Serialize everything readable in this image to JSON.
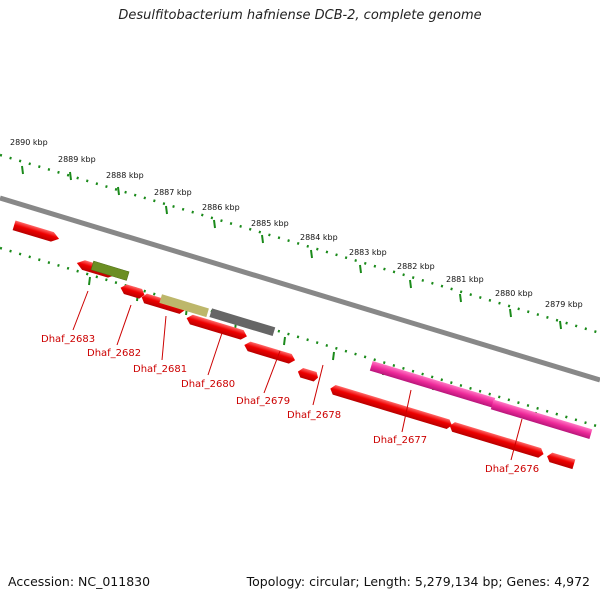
{
  "title": "Desulfitobacterium hafniense DCB-2, complete genome",
  "footer": {
    "accession": "Accession: NC_011830",
    "summary": "Topology: circular; Length: 5,279,134 bp; Genes: 4,972"
  },
  "colors": {
    "gene_red": "#ee0000",
    "gene_red_top": "#ff5a5a",
    "gene_olive": "#6b8e23",
    "gene_khaki": "#bdb76b",
    "gene_gray": "#666666",
    "gene_magenta": "#ee2a9a",
    "backbone": "#888888",
    "ticks": "#1a8a1a",
    "label": "#cc0000"
  },
  "kbp_labels": [
    "2890 kbp",
    "2889 kbp",
    "2888 kbp",
    "2887 kbp",
    "2886 kbp",
    "2885 kbp",
    "2884 kbp",
    "2883 kbp",
    "2882 kbp",
    "2881 kbp",
    "2880 kbp",
    "2879 kbp"
  ],
  "gene_labels": [
    "Dhaf_2683",
    "Dhaf_2682",
    "Dhaf_2681",
    "Dhaf_2680",
    "Dhaf_2679",
    "Dhaf_2678",
    "Dhaf_2677",
    "Dhaf_2676"
  ]
}
